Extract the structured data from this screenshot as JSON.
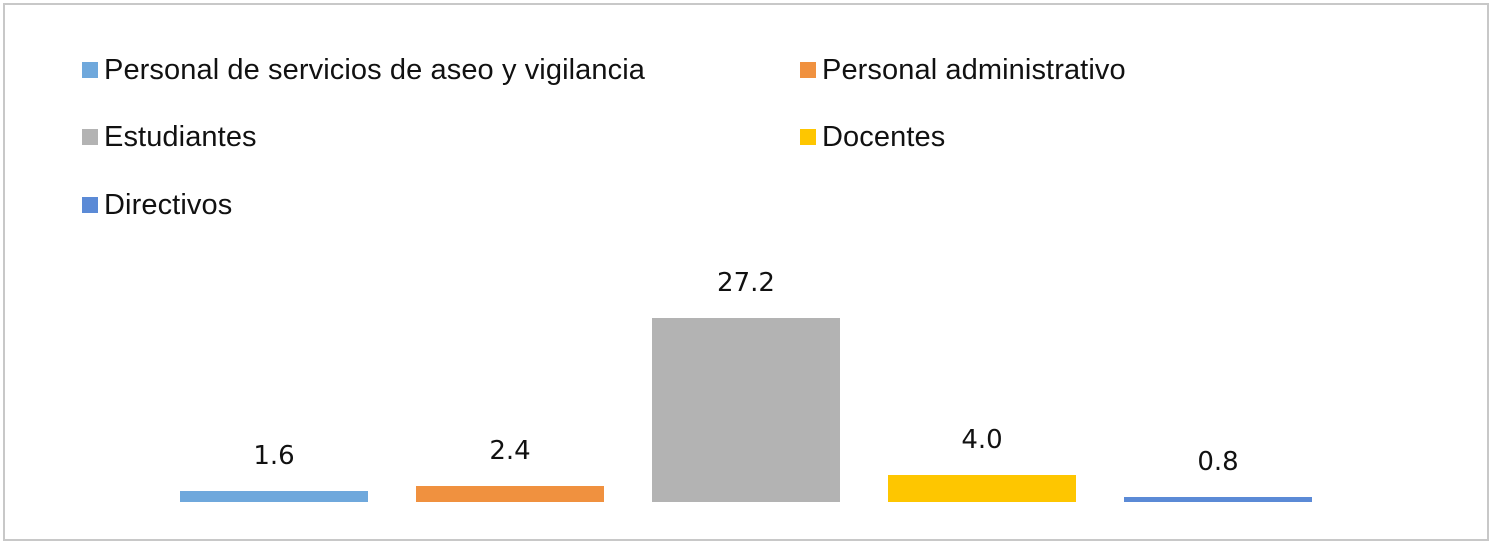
{
  "chart_data": {
    "type": "bar",
    "title": "",
    "xlabel": "",
    "ylabel": "",
    "grid": false,
    "legend_position": "top",
    "categories": [
      "Personal de servicios de aseo y vigilancia",
      "Personal administrativo",
      "Estudiantes",
      "Docentes",
      "Directivos"
    ],
    "values": [
      1.6,
      2.4,
      27.2,
      4.0,
      0.8
    ],
    "value_labels": [
      "1.6",
      "2.4",
      "27.2",
      "4.0",
      "0.8"
    ],
    "colors": [
      "#6fa8dc",
      "#f0913f",
      "#b3b3b3",
      "#fec600",
      "#5b8ad6"
    ],
    "ylim": [
      0,
      27.2
    ]
  },
  "legend": {
    "items": [
      {
        "label": "Personal de servicios de aseo y vigilancia",
        "color": "#6fa8dc"
      },
      {
        "label": "Personal administrativo",
        "color": "#f0913f"
      },
      {
        "label": "Estudiantes",
        "color": "#b3b3b3"
      },
      {
        "label": "Docentes",
        "color": "#fec600"
      },
      {
        "label": "Directivos",
        "color": "#5b8ad6"
      }
    ]
  }
}
